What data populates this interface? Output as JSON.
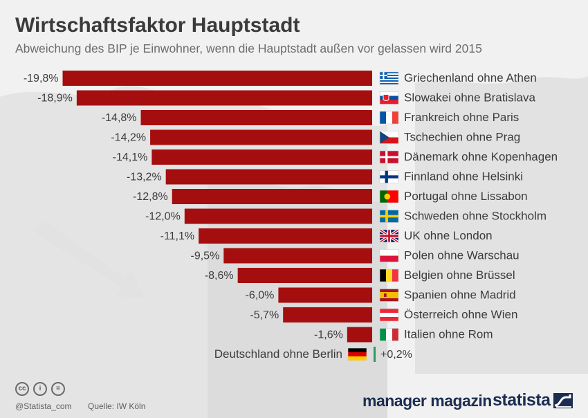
{
  "header": {
    "title": "Wirtschaftsfaktor Hauptstadt",
    "subtitle": "Abweichung des BIP je Einwohner, wenn die Hauptstadt außen vor gelassen wird 2015"
  },
  "footer": {
    "statista_handle": "@Statista_com",
    "source": "Quelle: IW Köln",
    "cc_icons": [
      "cc",
      "by",
      "nd"
    ],
    "logo_manager_magazin": "manager magazin",
    "logo_statista": "statista"
  },
  "colors": {
    "negative_bar": "#a50e0e",
    "positive_bar": "#2e9a5a",
    "background": "#f1f1f1"
  },
  "chart_data": {
    "type": "bar",
    "orientation": "horizontal",
    "categories": [
      "Griechenland ohne Athen",
      "Slowakei ohne Bratislava",
      "Frankreich ohne Paris",
      "Tschechien ohne Prag",
      "Dänemark ohne Kopenhagen",
      "Finnland ohne Helsinki",
      "Portugal ohne Lissabon",
      "Schweden ohne Stockholm",
      "UK ohne London",
      "Polen ohne Warschau",
      "Belgien ohne Brüssel",
      "Spanien ohne Madrid",
      "Österreich ohne Wien",
      "Italien ohne Rom",
      "Deutschland ohne Berlin"
    ],
    "values": [
      -19.8,
      -18.9,
      -14.8,
      -14.2,
      -14.1,
      -13.2,
      -12.8,
      -12.0,
      -11.1,
      -9.5,
      -8.6,
      -6.0,
      -5.7,
      -1.6,
      0.2
    ],
    "value_labels": [
      "-19,8%",
      "-18,9%",
      "-14,8%",
      "-14,2%",
      "-14,1%",
      "-13,2%",
      "-12,8%",
      "-12,0%",
      "-11,1%",
      "-9,5%",
      "-8,6%",
      "-6,0%",
      "-5,7%",
      "-1,6%",
      "+0,2%"
    ],
    "flags": [
      "gr",
      "sk",
      "fr",
      "cz",
      "dk",
      "fi",
      "pt",
      "se",
      "gb",
      "pl",
      "be",
      "es",
      "at",
      "it",
      "de"
    ],
    "unit": "%"
  }
}
